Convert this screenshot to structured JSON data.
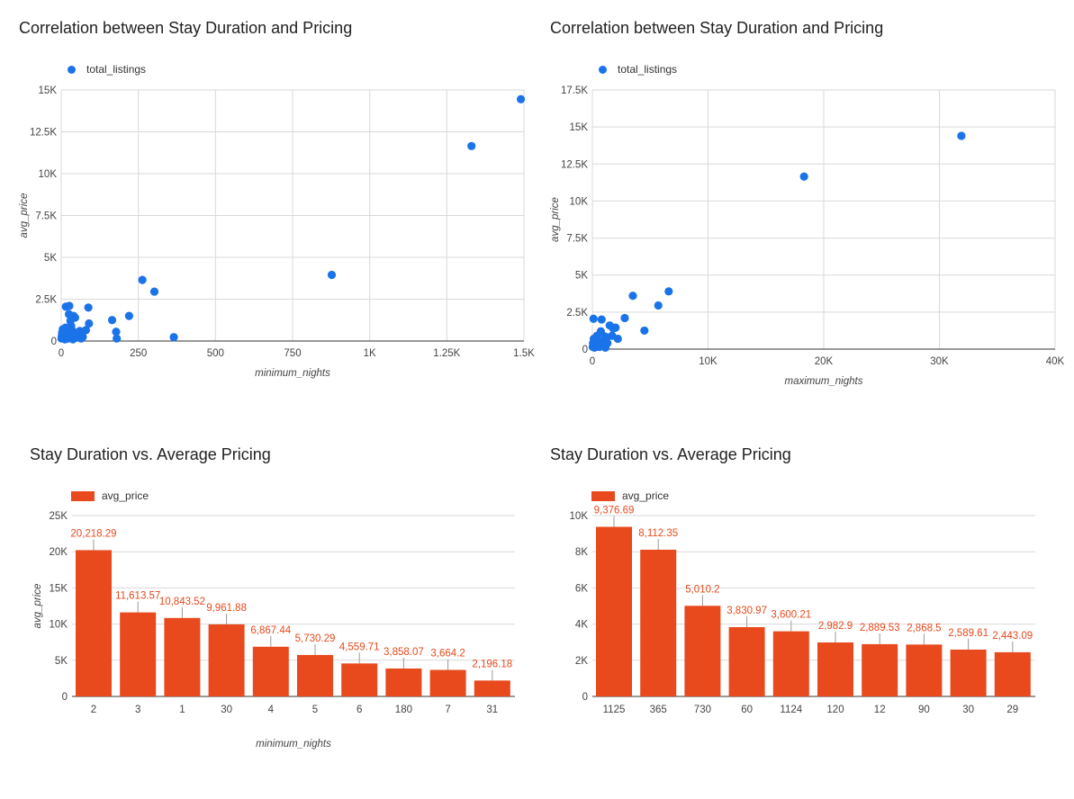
{
  "chart_data": [
    {
      "type": "scatter",
      "title": "Correlation between Stay Duration and Pricing",
      "legend": "total_listings",
      "legend_position": "top-left",
      "xlabel": "minimum_nights",
      "ylabel": "avg_price",
      "xlim": [
        0,
        1500
      ],
      "ylim": [
        0,
        15000
      ],
      "xticks": [
        0,
        250,
        500,
        750,
        1000,
        1250,
        1500
      ],
      "xtick_labels": [
        "0",
        "250",
        "500",
        "750",
        "1K",
        "1.25K",
        "1.5K"
      ],
      "yticks": [
        0,
        2500,
        5000,
        7500,
        10000,
        12500,
        15000
      ],
      "ytick_labels": [
        "0",
        "2.5K",
        "5K",
        "7.5K",
        "10K",
        "12.5K",
        "15K"
      ],
      "color": "#1a73e8",
      "points": [
        [
          1,
          150
        ],
        [
          2,
          300
        ],
        [
          3,
          500
        ],
        [
          4,
          200
        ],
        [
          5,
          700
        ],
        [
          6,
          400
        ],
        [
          8,
          250
        ],
        [
          10,
          600
        ],
        [
          12,
          100
        ],
        [
          14,
          800
        ],
        [
          15,
          2050
        ],
        [
          18,
          350
        ],
        [
          20,
          500
        ],
        [
          22,
          150
        ],
        [
          25,
          1600
        ],
        [
          26,
          2100
        ],
        [
          28,
          300
        ],
        [
          30,
          1200
        ],
        [
          32,
          900
        ],
        [
          35,
          650
        ],
        [
          38,
          100
        ],
        [
          40,
          1500
        ],
        [
          42,
          450
        ],
        [
          45,
          1400
        ],
        [
          50,
          200
        ],
        [
          55,
          350
        ],
        [
          60,
          600
        ],
        [
          65,
          150
        ],
        [
          70,
          250
        ],
        [
          80,
          650
        ],
        [
          88,
          2000
        ],
        [
          90,
          1050
        ],
        [
          165,
          1250
        ],
        [
          178,
          550
        ],
        [
          180,
          150
        ],
        [
          220,
          1500
        ],
        [
          263,
          3650
        ],
        [
          302,
          2950
        ],
        [
          365,
          230
        ],
        [
          877,
          3950
        ],
        [
          1330,
          11650
        ],
        [
          1490,
          14450
        ]
      ]
    },
    {
      "type": "scatter",
      "title": "Correlation between Stay Duration and Pricing",
      "legend": "total_listings",
      "legend_position": "top-left",
      "xlabel": "maximum_nights",
      "ylabel": "avg_price",
      "xlim": [
        0,
        40000
      ],
      "ylim": [
        0,
        17500
      ],
      "xticks": [
        0,
        10000,
        20000,
        30000,
        40000
      ],
      "xtick_labels": [
        "0",
        "10K",
        "20K",
        "30K",
        "40K"
      ],
      "yticks": [
        0,
        2500,
        5000,
        7500,
        10000,
        12500,
        15000,
        17500
      ],
      "ytick_labels": [
        "0",
        "2.5K",
        "5K",
        "7.5K",
        "10K",
        "12.5K",
        "15K",
        "17.5K"
      ],
      "color": "#1a73e8",
      "points": [
        [
          30,
          150
        ],
        [
          60,
          400
        ],
        [
          90,
          250
        ],
        [
          100,
          2050
        ],
        [
          120,
          700
        ],
        [
          180,
          100
        ],
        [
          200,
          500
        ],
        [
          250,
          300
        ],
        [
          300,
          650
        ],
        [
          365,
          200
        ],
        [
          400,
          900
        ],
        [
          500,
          450
        ],
        [
          600,
          150
        ],
        [
          730,
          1200
        ],
        [
          800,
          2000
        ],
        [
          900,
          550
        ],
        [
          1000,
          300
        ],
        [
          1100,
          850
        ],
        [
          1125,
          100
        ],
        [
          1200,
          650
        ],
        [
          1300,
          400
        ],
        [
          1500,
          1600
        ],
        [
          1700,
          900
        ],
        [
          1800,
          1400
        ],
        [
          2000,
          1450
        ],
        [
          2200,
          700
        ],
        [
          2800,
          2100
        ],
        [
          3500,
          3600
        ],
        [
          4500,
          1250
        ],
        [
          5700,
          2950
        ],
        [
          6600,
          3900
        ],
        [
          18300,
          11650
        ],
        [
          31900,
          14400
        ]
      ]
    },
    {
      "type": "bar",
      "title": "Stay Duration vs. Average Pricing",
      "legend": "avg_price",
      "legend_position": "top-left",
      "xlabel": "minimum_nights",
      "ylabel": "avg_price",
      "ylim": [
        0,
        25000
      ],
      "yticks": [
        0,
        5000,
        10000,
        15000,
        20000,
        25000
      ],
      "ytick_labels": [
        "0",
        "5K",
        "10K",
        "15K",
        "20K",
        "25K"
      ],
      "color": "#e8491d",
      "categories": [
        "2",
        "3",
        "1",
        "30",
        "4",
        "5",
        "6",
        "180",
        "7",
        "31"
      ],
      "values": [
        20218.29,
        11613.57,
        10843.52,
        9961.88,
        6867.44,
        5730.29,
        4559.71,
        3858.07,
        3664.2,
        2196.18
      ],
      "value_labels": [
        "20,218.29",
        "11,613.57",
        "10,843.52",
        "9,961.88",
        "6,867.44",
        "5,730.29",
        "4,559.71",
        "3,858.07",
        "3,664.2",
        "2,196.18"
      ]
    },
    {
      "type": "bar",
      "title": "Stay Duration vs. Average Pricing",
      "legend": "avg_price",
      "legend_position": "top-left",
      "xlabel": "",
      "ylabel": "",
      "ylim": [
        0,
        10000
      ],
      "yticks": [
        0,
        2000,
        4000,
        6000,
        8000,
        10000
      ],
      "ytick_labels": [
        "0",
        "2K",
        "4K",
        "6K",
        "8K",
        "10K"
      ],
      "color": "#e8491d",
      "categories": [
        "1125",
        "365",
        "730",
        "60",
        "1124",
        "120",
        "12",
        "90",
        "30",
        "29"
      ],
      "values": [
        9376.69,
        8112.35,
        5010.2,
        3830.97,
        3600.21,
        2982.9,
        2889.53,
        2868.5,
        2589.61,
        2443.09
      ],
      "value_labels": [
        "9,376.69",
        "8,112.35",
        "5,010.2",
        "3,830.97",
        "3,600.21",
        "2,982.9",
        "2,889.53",
        "2,868.5",
        "2,589.61",
        "2,443.09"
      ]
    }
  ]
}
